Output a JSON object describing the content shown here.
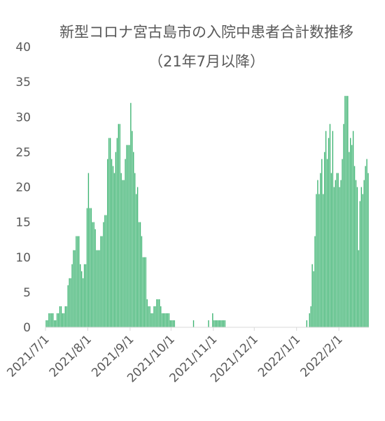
{
  "chart_data": {
    "type": "bar",
    "title": "新型コロナ宮古島市の入院中患者合計数推移",
    "subtitle": "（21年7月以降）",
    "xlabel": "",
    "ylabel": "",
    "ylim": [
      0,
      40
    ],
    "y_ticks": [
      "0",
      "5",
      "10",
      "15",
      "20",
      "25",
      "30",
      "35",
      "40"
    ],
    "x_start": "2021-07-01",
    "x_ticks": [
      "2021/7/1",
      "2021/8/1",
      "2021/9/1",
      "2021/10/1",
      "2021/11/1",
      "2021/12/1",
      "2022/1/1",
      "2022/2/1"
    ],
    "grid": false,
    "legend": "none",
    "bar_color": "#3cb371",
    "values": [
      1,
      1,
      2,
      2,
      2,
      2,
      1,
      1,
      2,
      2,
      3,
      3,
      2,
      2,
      3,
      3,
      6,
      7,
      7,
      9,
      11,
      11,
      13,
      13,
      13,
      9,
      8,
      7,
      9,
      9,
      17,
      22,
      17,
      17,
      15,
      15,
      14,
      11,
      11,
      11,
      13,
      13,
      15,
      16,
      16,
      24,
      27,
      27,
      24,
      23,
      22,
      25,
      27,
      29,
      29,
      22,
      21,
      21,
      24,
      26,
      26,
      26,
      32,
      28,
      25,
      22,
      19,
      20,
      15,
      15,
      13,
      10,
      10,
      10,
      4,
      3,
      3,
      2,
      2,
      3,
      3,
      4,
      4,
      4,
      3,
      2,
      2,
      2,
      2,
      2,
      2,
      1,
      1,
      1,
      1,
      0,
      0,
      0,
      0,
      0,
      0,
      0,
      0,
      0,
      0,
      0,
      0,
      0,
      1,
      0,
      0,
      0,
      0,
      0,
      0,
      0,
      0,
      0,
      0,
      1,
      0,
      0,
      2,
      1,
      1,
      1,
      1,
      1,
      1,
      1,
      1,
      1,
      0,
      0,
      0,
      0,
      0,
      0,
      0,
      0,
      0,
      0,
      0,
      0,
      0,
      0,
      0,
      0,
      0,
      0,
      0,
      0,
      0,
      0,
      0,
      0,
      0,
      0,
      0,
      0,
      0,
      0,
      0,
      0,
      0,
      0,
      0,
      0,
      0,
      0,
      0,
      0,
      0,
      0,
      0,
      0,
      0,
      0,
      0,
      0,
      0,
      0,
      0,
      0,
      0,
      0,
      0,
      0,
      0,
      0,
      0,
      1,
      0,
      2,
      3,
      9,
      8,
      13,
      19,
      21,
      19,
      22,
      24,
      19,
      25,
      28,
      24,
      27,
      29,
      22,
      28,
      20,
      21,
      22,
      22,
      20,
      21,
      24,
      29,
      33,
      33,
      33,
      25,
      27,
      26,
      28,
      23,
      21,
      20,
      11,
      18,
      20,
      19,
      21,
      23,
      24,
      22
    ]
  }
}
